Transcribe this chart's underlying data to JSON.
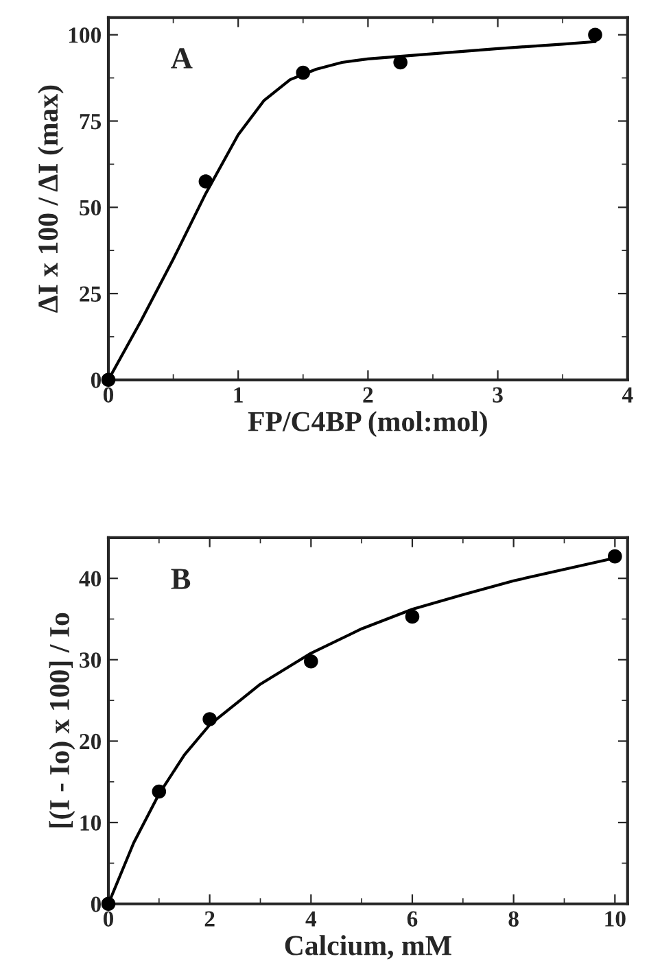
{
  "chart_data": [
    {
      "type": "scatter",
      "xlabel": "FP/C4BP (mol:mol)",
      "ylabel": "ΔI x 100 / ΔI (max)",
      "annotations": [
        "A"
      ],
      "xlim": [
        0,
        4
      ],
      "ylim": [
        0,
        105
      ],
      "xticks": [
        0,
        1,
        2,
        3,
        4
      ],
      "yticks": [
        0,
        25,
        50,
        75,
        100
      ],
      "grid": false,
      "series": [
        {
          "marker": "circle",
          "color": "#000000",
          "x": [
            0,
            0.75,
            1.5,
            2.25,
            3.75
          ],
          "values": [
            0,
            57.5,
            89,
            92,
            100
          ]
        },
        {
          "type": "line",
          "color": "#000000",
          "x": [
            0,
            0.25,
            0.5,
            0.75,
            1,
            1.2,
            1.4,
            1.6,
            1.8,
            2,
            2.5,
            3,
            3.5,
            3.75
          ],
          "values": [
            0,
            17,
            35,
            54,
            71,
            81,
            87,
            90,
            92,
            93,
            94.5,
            96,
            97.3,
            98
          ]
        }
      ]
    },
    {
      "type": "scatter",
      "xlabel": "Calcium, mM",
      "ylabel": "[(I - Io) x 100] / Io",
      "annotations": [
        "B"
      ],
      "xlim": [
        0,
        10.25
      ],
      "ylim": [
        0,
        45
      ],
      "xticks": [
        0,
        2,
        4,
        6,
        8,
        10
      ],
      "yticks": [
        0,
        10,
        20,
        30,
        40
      ],
      "grid": false,
      "series": [
        {
          "marker": "circle",
          "color": "#000000",
          "x": [
            0,
            1,
            2,
            4,
            6,
            10
          ],
          "values": [
            0,
            13.8,
            22.7,
            29.8,
            35.3,
            42.7
          ]
        },
        {
          "type": "line",
          "color": "#000000",
          "x": [
            0,
            0.5,
            1,
            1.5,
            2,
            3,
            4,
            5,
            6,
            7,
            8,
            10
          ],
          "values": [
            0,
            7.5,
            13.5,
            18.3,
            22,
            27,
            30.8,
            33.8,
            36.2,
            38,
            39.7,
            42.5
          ]
        }
      ]
    }
  ]
}
